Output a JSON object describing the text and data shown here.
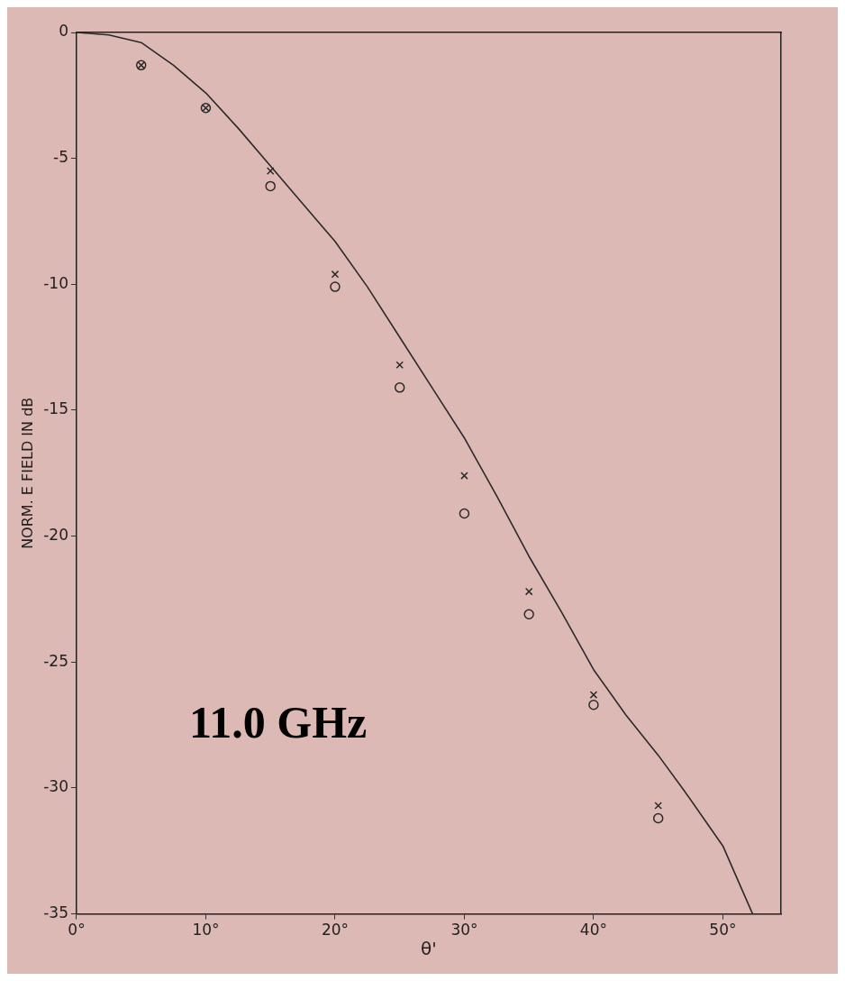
{
  "chart_data": {
    "type": "scatter",
    "xlabel": "θ'",
    "ylabel": "NORM. E FIELD IN dB",
    "annotations": [
      "11.0 GHz"
    ],
    "xlim": [
      0,
      54.5
    ],
    "ylim": [
      -35,
      0
    ],
    "xticks": [
      {
        "value": 0,
        "label": "0°"
      },
      {
        "value": 10,
        "label": "10°"
      },
      {
        "value": 20,
        "label": "20°"
      },
      {
        "value": 30,
        "label": "30°"
      },
      {
        "value": 40,
        "label": "40°"
      },
      {
        "value": 50,
        "label": "50°"
      }
    ],
    "yticks": [
      0,
      -5,
      -10,
      -15,
      -20,
      -25,
      -30,
      -35
    ],
    "grid": false,
    "legend": false,
    "series": [
      {
        "type": "line",
        "color": "#2a2a2a",
        "marker": "none",
        "line_style": "solid",
        "x": [
          0,
          2.5,
          5,
          7.5,
          10,
          12.5,
          15,
          17.5,
          20,
          22.5,
          25,
          27.5,
          30,
          32.5,
          35,
          37.5,
          40,
          42.5,
          45,
          47,
          50,
          52.3
        ],
        "values": [
          0,
          -0.1,
          -0.4,
          -1.3,
          -2.4,
          -3.8,
          -5.3,
          -6.8,
          -8.3,
          -10.1,
          -12.1,
          -14.1,
          -16.1,
          -18.4,
          -20.8,
          -23.0,
          -25.3,
          -27.1,
          -28.7,
          -30.1,
          -32.3,
          -35
        ]
      },
      {
        "type": "scatter",
        "color": "#2a2a2a",
        "marker": "circle",
        "x": [
          5,
          10,
          15,
          20,
          25,
          30,
          35,
          40,
          45
        ],
        "values": [
          -1.3,
          -3.0,
          -6.1,
          -10.1,
          -14.1,
          -19.1,
          -23.1,
          -26.7,
          -31.2
        ]
      },
      {
        "type": "scatter",
        "color": "#2a2a2a",
        "marker": "cross",
        "x": [
          5,
          10,
          15,
          20,
          25,
          30,
          35,
          40,
          45
        ],
        "values": [
          -1.3,
          -3.0,
          -5.5,
          -9.6,
          -13.2,
          -17.6,
          -22.2,
          -26.3,
          -30.7
        ]
      }
    ]
  }
}
